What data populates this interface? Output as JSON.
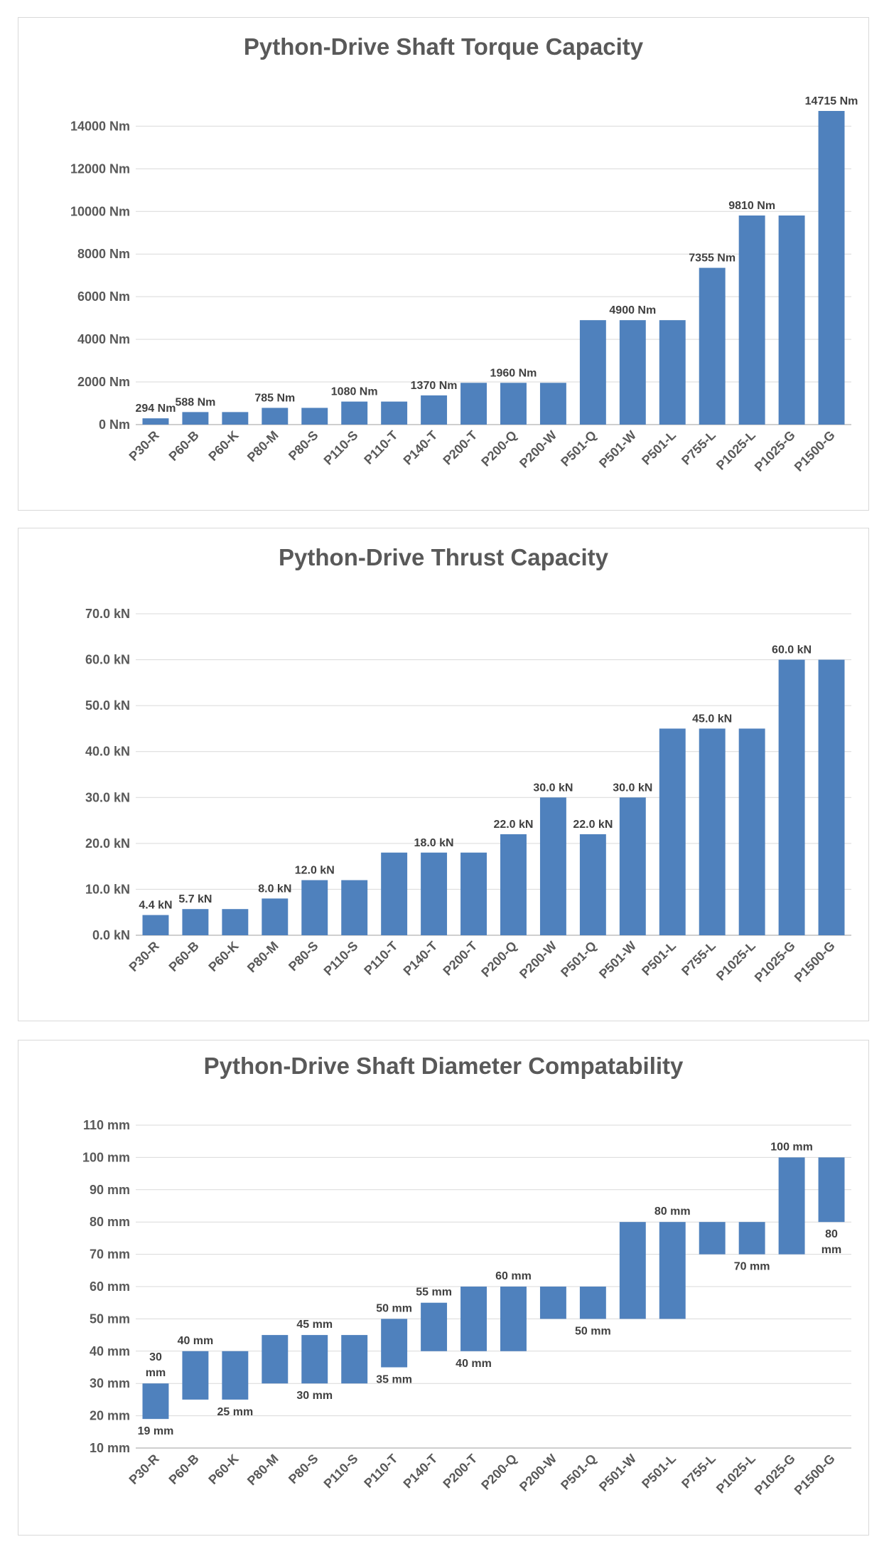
{
  "chart_data": [
    {
      "type": "bar",
      "title": "Python-Drive Shaft Torque Capacity",
      "categories": [
        "P30-R",
        "P60-B",
        "P60-K",
        "P80-M",
        "P80-S",
        "P110-S",
        "P110-T",
        "P140-T",
        "P200-T",
        "P200-Q",
        "P200-W",
        "P501-Q",
        "P501-W",
        "P501-L",
        "P755-L",
        "P1025-L",
        "P1025-G",
        "P1500-G"
      ],
      "values": [
        294,
        588,
        588,
        785,
        785,
        1080,
        1080,
        1370,
        1960,
        1960,
        1960,
        4900,
        4900,
        4900,
        7355,
        9810,
        9810,
        14715
      ],
      "ylim": [
        0,
        14715
      ],
      "yticks": [
        0,
        2000,
        4000,
        6000,
        8000,
        10000,
        12000,
        14000
      ],
      "ytick_labels": [
        "0 Nm",
        "2000 Nm",
        "4000 Nm",
        "6000 Nm",
        "8000 Nm",
        "10000 Nm",
        "12000 Nm",
        "14000 Nm"
      ],
      "data_labels": [
        {
          "index": 0,
          "text": "294 Nm"
        },
        {
          "index": 1,
          "text": "588 Nm"
        },
        {
          "index": 3,
          "text": "785 Nm"
        },
        {
          "index": 5,
          "text": "1080 Nm"
        },
        {
          "index": 7,
          "text": "1370 Nm"
        },
        {
          "index": 9,
          "text": "1960 Nm"
        },
        {
          "index": 12,
          "text": "4900 Nm"
        },
        {
          "index": 14,
          "text": "7355 Nm"
        },
        {
          "index": 15,
          "text": "9810 Nm"
        },
        {
          "index": 17,
          "text": "14715 Nm"
        }
      ],
      "xlabel": "",
      "ylabel": "",
      "grid": true,
      "legend": "none"
    },
    {
      "type": "bar",
      "title": "Python-Drive Thrust Capacity",
      "categories": [
        "P30-R",
        "P60-B",
        "P60-K",
        "P80-M",
        "P80-S",
        "P110-S",
        "P110-T",
        "P140-T",
        "P200-T",
        "P200-Q",
        "P200-W",
        "P501-Q",
        "P501-W",
        "P501-L",
        "P755-L",
        "P1025-L",
        "P1025-G",
        "P1500-G"
      ],
      "values": [
        4.4,
        5.7,
        5.7,
        8.0,
        12.0,
        12.0,
        18.0,
        18.0,
        18.0,
        22.0,
        30.0,
        22.0,
        30.0,
        45.0,
        45.0,
        45.0,
        60.0,
        60.0
      ],
      "ylim": [
        0,
        70
      ],
      "yticks": [
        0,
        10,
        20,
        30,
        40,
        50,
        60,
        70
      ],
      "ytick_labels": [
        "0.0 kN",
        "10.0 kN",
        "20.0 kN",
        "30.0 kN",
        "40.0 kN",
        "50.0 kN",
        "60.0 kN",
        "70.0 kN"
      ],
      "data_labels": [
        {
          "index": 0,
          "text": "4.4 kN"
        },
        {
          "index": 1,
          "text": "5.7 kN"
        },
        {
          "index": 3,
          "text": "8.0 kN"
        },
        {
          "index": 4,
          "text": "12.0 kN"
        },
        {
          "index": 7,
          "text": "18.0 kN"
        },
        {
          "index": 9,
          "text": "22.0 kN"
        },
        {
          "index": 10,
          "text": "30.0 kN"
        },
        {
          "index": 11,
          "text": "22.0 kN"
        },
        {
          "index": 12,
          "text": "30.0 kN"
        },
        {
          "index": 14,
          "text": "45.0 kN"
        },
        {
          "index": 16,
          "text": "60.0 kN"
        }
      ],
      "xlabel": "",
      "ylabel": "",
      "grid": true,
      "legend": "none"
    },
    {
      "type": "floating-bar",
      "title": "Python-Drive Shaft Diameter Compatability",
      "categories": [
        "P30-R",
        "P60-B",
        "P60-K",
        "P80-M",
        "P80-S",
        "P110-S",
        "P110-T",
        "P140-T",
        "P200-T",
        "P200-Q",
        "P200-W",
        "P501-Q",
        "P501-W",
        "P501-L",
        "P755-L",
        "P1025-L",
        "P1025-G",
        "P1500-G"
      ],
      "low": [
        19,
        25,
        25,
        30,
        30,
        30,
        35,
        40,
        40,
        40,
        50,
        50,
        50,
        50,
        70,
        70,
        70,
        80
      ],
      "high": [
        30,
        40,
        40,
        45,
        45,
        45,
        50,
        55,
        60,
        60,
        60,
        60,
        80,
        80,
        80,
        80,
        100,
        100
      ],
      "ylim": [
        10,
        110
      ],
      "yticks": [
        10,
        20,
        30,
        40,
        50,
        60,
        70,
        80,
        90,
        100,
        110
      ],
      "ytick_labels": [
        "10 mm",
        "20 mm",
        "30 mm",
        "40 mm",
        "50 mm",
        "60 mm",
        "70 mm",
        "80 mm",
        "90 mm",
        "100 mm",
        "110 mm"
      ],
      "data_labels": [
        {
          "index": 0,
          "pos": "above",
          "lines": [
            "30",
            "mm"
          ]
        },
        {
          "index": 0,
          "pos": "below",
          "lines": [
            "19 mm"
          ]
        },
        {
          "index": 1,
          "pos": "above",
          "lines": [
            "40 mm"
          ]
        },
        {
          "index": 2,
          "pos": "below",
          "lines": [
            "25 mm"
          ]
        },
        {
          "index": 4,
          "pos": "above",
          "lines": [
            "45 mm"
          ]
        },
        {
          "index": 4,
          "pos": "below",
          "lines": [
            "30 mm"
          ]
        },
        {
          "index": 6,
          "pos": "above",
          "lines": [
            "50 mm"
          ]
        },
        {
          "index": 6,
          "pos": "below",
          "lines": [
            "35 mm"
          ]
        },
        {
          "index": 7,
          "pos": "above",
          "lines": [
            "55 mm"
          ]
        },
        {
          "index": 8,
          "pos": "below",
          "lines": [
            "40 mm"
          ]
        },
        {
          "index": 9,
          "pos": "above",
          "lines": [
            "60 mm"
          ]
        },
        {
          "index": 11,
          "pos": "below",
          "lines": [
            "50 mm"
          ]
        },
        {
          "index": 13,
          "pos": "above",
          "lines": [
            "80 mm"
          ]
        },
        {
          "index": 15,
          "pos": "below",
          "lines": [
            "70 mm"
          ]
        },
        {
          "index": 16,
          "pos": "above",
          "lines": [
            "100 mm"
          ]
        },
        {
          "index": 17,
          "pos": "below",
          "lines": [
            "80",
            "mm"
          ]
        }
      ],
      "xlabel": "",
      "ylabel": "",
      "grid": true,
      "legend": "none"
    }
  ]
}
